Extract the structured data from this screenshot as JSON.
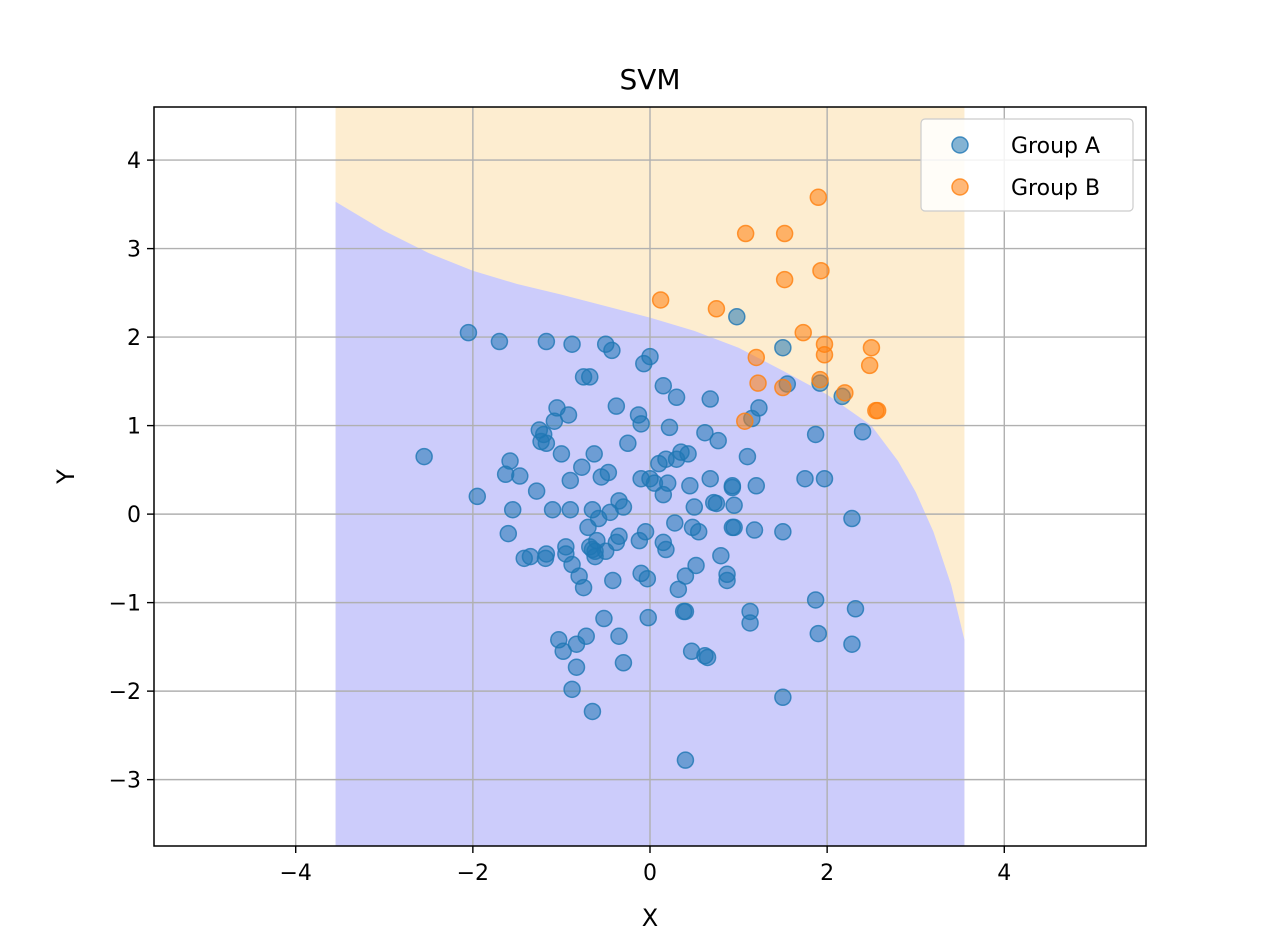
{
  "chart_data": {
    "type": "scatter",
    "title": "SVM",
    "xlabel": "X",
    "ylabel": "Y",
    "xlim": [
      -5.6,
      5.6
    ],
    "ylim": [
      -3.75,
      4.6
    ],
    "xticks": [
      -4,
      -2,
      0,
      2,
      4
    ],
    "yticks": [
      -3,
      -2,
      -1,
      0,
      1,
      2,
      3,
      4
    ],
    "xtick_labels": [
      "−4",
      "−2",
      "0",
      "2",
      "4"
    ],
    "ytick_labels": [
      "−3",
      "−2",
      "−1",
      "0",
      "1",
      "2",
      "3",
      "4"
    ],
    "grid": true,
    "legend_position": "top-right",
    "decision_region": {
      "x_range": [
        -3.55,
        3.55
      ],
      "class_a_color": "#ccccfb",
      "class_b_color": "#fdedd0",
      "boundary": [
        [
          -3.55,
          3.53
        ],
        [
          -3.0,
          3.2
        ],
        [
          -2.5,
          2.95
        ],
        [
          -2.0,
          2.75
        ],
        [
          -1.5,
          2.6
        ],
        [
          -1.0,
          2.48
        ],
        [
          -0.5,
          2.35
        ],
        [
          0.0,
          2.22
        ],
        [
          0.5,
          2.07
        ],
        [
          1.0,
          1.88
        ],
        [
          1.5,
          1.62
        ],
        [
          2.0,
          1.35
        ],
        [
          2.5,
          1.0
        ],
        [
          2.8,
          0.6
        ],
        [
          3.0,
          0.25
        ],
        [
          3.2,
          -0.2
        ],
        [
          3.4,
          -0.8
        ],
        [
          3.55,
          -1.42
        ]
      ]
    },
    "series": [
      {
        "name": "Group A",
        "color": "#1f77b4",
        "points": [
          [
            -2.05,
            2.05
          ],
          [
            -1.7,
            1.95
          ],
          [
            -1.17,
            1.95
          ],
          [
            -0.88,
            1.92
          ],
          [
            -0.5,
            1.92
          ],
          [
            -0.43,
            1.85
          ],
          [
            0.0,
            1.78
          ],
          [
            -0.07,
            1.7
          ],
          [
            -0.75,
            1.55
          ],
          [
            -0.68,
            1.55
          ],
          [
            0.15,
            1.45
          ],
          [
            0.3,
            1.32
          ],
          [
            0.68,
            1.3
          ],
          [
            -1.05,
            1.2
          ],
          [
            -0.38,
            1.22
          ],
          [
            -0.92,
            1.12
          ],
          [
            -0.13,
            1.12
          ],
          [
            -1.08,
            1.05
          ],
          [
            -0.1,
            1.02
          ],
          [
            0.22,
            0.98
          ],
          [
            -1.25,
            0.95
          ],
          [
            -1.2,
            0.9
          ],
          [
            -1.23,
            0.82
          ],
          [
            -1.17,
            0.8
          ],
          [
            0.62,
            0.92
          ],
          [
            0.77,
            0.83
          ],
          [
            -0.25,
            0.8
          ],
          [
            -1.0,
            0.68
          ],
          [
            -0.63,
            0.68
          ],
          [
            0.35,
            0.7
          ],
          [
            0.43,
            0.68
          ],
          [
            1.1,
            0.65
          ],
          [
            -2.55,
            0.65
          ],
          [
            -1.58,
            0.6
          ],
          [
            0.18,
            0.62
          ],
          [
            0.1,
            0.57
          ],
          [
            0.3,
            0.62
          ],
          [
            -0.77,
            0.53
          ],
          [
            -1.63,
            0.45
          ],
          [
            -1.47,
            0.43
          ],
          [
            -0.47,
            0.47
          ],
          [
            -0.55,
            0.42
          ],
          [
            -0.9,
            0.38
          ],
          [
            0.0,
            0.4
          ],
          [
            -0.1,
            0.4
          ],
          [
            0.05,
            0.35
          ],
          [
            0.2,
            0.35
          ],
          [
            0.45,
            0.32
          ],
          [
            0.68,
            0.4
          ],
          [
            0.93,
            0.32
          ],
          [
            0.93,
            0.3
          ],
          [
            1.2,
            0.32
          ],
          [
            1.75,
            0.4
          ],
          [
            1.97,
            0.4
          ],
          [
            -1.95,
            0.2
          ],
          [
            -1.28,
            0.26
          ],
          [
            0.15,
            0.22
          ],
          [
            -0.35,
            0.15
          ],
          [
            -0.3,
            0.08
          ],
          [
            0.75,
            0.12
          ],
          [
            0.72,
            0.13
          ],
          [
            0.95,
            0.1
          ],
          [
            -1.55,
            0.05
          ],
          [
            -1.1,
            0.05
          ],
          [
            -0.9,
            0.05
          ],
          [
            -0.65,
            0.05
          ],
          [
            -0.45,
            0.02
          ],
          [
            0.5,
            0.08
          ],
          [
            -0.58,
            -0.05
          ],
          [
            -0.7,
            -0.15
          ],
          [
            0.28,
            -0.1
          ],
          [
            0.48,
            -0.15
          ],
          [
            0.55,
            -0.2
          ],
          [
            0.95,
            -0.15
          ],
          [
            0.93,
            -0.15
          ],
          [
            1.18,
            -0.18
          ],
          [
            1.5,
            -0.2
          ],
          [
            2.28,
            -0.05
          ],
          [
            -1.6,
            -0.22
          ],
          [
            -0.05,
            -0.2
          ],
          [
            -0.35,
            -0.25
          ],
          [
            -0.6,
            -0.3
          ],
          [
            -0.12,
            -0.3
          ],
          [
            -0.38,
            -0.32
          ],
          [
            0.15,
            -0.32
          ],
          [
            0.18,
            -0.4
          ],
          [
            -0.95,
            -0.37
          ],
          [
            -0.68,
            -0.37
          ],
          [
            -0.65,
            -0.4
          ],
          [
            -0.62,
            -0.42
          ],
          [
            -0.5,
            -0.42
          ],
          [
            -0.95,
            -0.45
          ],
          [
            -1.17,
            -0.45
          ],
          [
            -1.35,
            -0.48
          ],
          [
            -1.42,
            -0.5
          ],
          [
            -1.18,
            -0.5
          ],
          [
            -0.62,
            -0.48
          ],
          [
            0.8,
            -0.47
          ],
          [
            0.52,
            -0.58
          ],
          [
            -0.88,
            -0.57
          ],
          [
            -0.1,
            -0.67
          ],
          [
            -0.8,
            -0.7
          ],
          [
            0.4,
            -0.7
          ],
          [
            0.87,
            -0.68
          ],
          [
            -0.03,
            -0.73
          ],
          [
            -0.42,
            -0.75
          ],
          [
            0.87,
            -0.75
          ],
          [
            -0.75,
            -0.83
          ],
          [
            0.32,
            -0.85
          ],
          [
            1.87,
            -0.97
          ],
          [
            2.32,
            -1.07
          ],
          [
            0.38,
            -1.1
          ],
          [
            0.4,
            -1.1
          ],
          [
            1.13,
            -1.1
          ],
          [
            -0.02,
            -1.17
          ],
          [
            -0.52,
            -1.18
          ],
          [
            1.13,
            -1.23
          ],
          [
            1.9,
            -1.35
          ],
          [
            -0.35,
            -1.38
          ],
          [
            -1.03,
            -1.42
          ],
          [
            -0.72,
            -1.38
          ],
          [
            2.28,
            -1.47
          ],
          [
            -0.83,
            -1.47
          ],
          [
            -0.98,
            -1.55
          ],
          [
            0.47,
            -1.55
          ],
          [
            0.62,
            -1.6
          ],
          [
            0.65,
            -1.62
          ],
          [
            -0.3,
            -1.68
          ],
          [
            -0.83,
            -1.73
          ],
          [
            -0.88,
            -1.98
          ],
          [
            1.5,
            -2.07
          ],
          [
            -0.65,
            -2.23
          ],
          [
            0.4,
            -2.78
          ],
          [
            0.98,
            2.23
          ],
          [
            1.5,
            1.88
          ],
          [
            1.55,
            1.47
          ],
          [
            1.92,
            1.48
          ],
          [
            2.17,
            1.33
          ],
          [
            1.23,
            1.2
          ],
          [
            1.15,
            1.08
          ],
          [
            1.87,
            0.9
          ],
          [
            2.4,
            0.93
          ]
        ]
      },
      {
        "name": "Group B",
        "color": "#ff7f0e",
        "points": [
          [
            1.9,
            3.58
          ],
          [
            1.08,
            3.17
          ],
          [
            1.52,
            3.17
          ],
          [
            1.93,
            2.75
          ],
          [
            1.52,
            2.65
          ],
          [
            0.12,
            2.42
          ],
          [
            0.75,
            2.32
          ],
          [
            1.73,
            2.05
          ],
          [
            1.97,
            1.92
          ],
          [
            2.5,
            1.88
          ],
          [
            1.2,
            1.77
          ],
          [
            1.97,
            1.8
          ],
          [
            2.48,
            1.68
          ],
          [
            1.22,
            1.48
          ],
          [
            1.92,
            1.52
          ],
          [
            1.5,
            1.43
          ],
          [
            2.2,
            1.37
          ],
          [
            2.55,
            1.17
          ],
          [
            2.57,
            1.17
          ],
          [
            1.07,
            1.05
          ]
        ]
      }
    ]
  }
}
